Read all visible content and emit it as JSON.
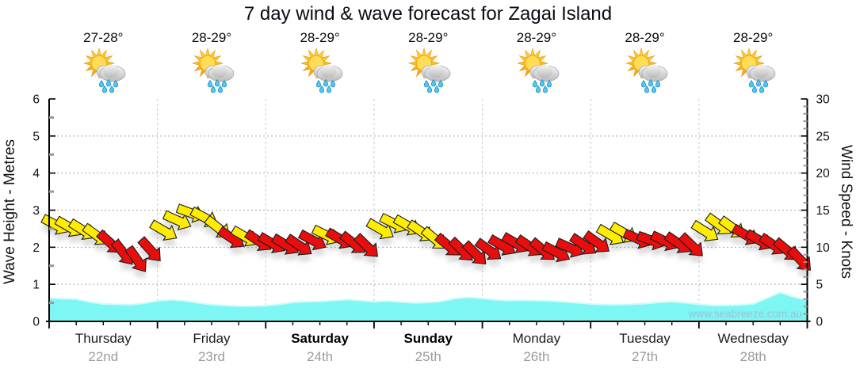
{
  "title": "7 day wind & wave forecast for Zagai Island",
  "watermark": "www.seabreeze.com.au",
  "left_axis": {
    "label": "Wave Height - Metres",
    "min": 0,
    "max": 6,
    "major_ticks": [
      0,
      1,
      2,
      3,
      4,
      5,
      6
    ],
    "minor_step": 0.5
  },
  "right_axis": {
    "label": "Wind Speed - Knots",
    "min": 0,
    "max": 30,
    "major_ticks": [
      0,
      5,
      10,
      15,
      20,
      25,
      30
    ],
    "minor_step": 1
  },
  "days": [
    {
      "name": "Thursday",
      "date": "22nd",
      "temp": "27-28°",
      "icon": "sun-cloud-rain",
      "weekend": false
    },
    {
      "name": "Friday",
      "date": "23rd",
      "temp": "28-29°",
      "icon": "sun-cloud-rain",
      "weekend": false
    },
    {
      "name": "Saturday",
      "date": "24th",
      "temp": "28-29°",
      "icon": "sun-cloud-rain",
      "weekend": true
    },
    {
      "name": "Sunday",
      "date": "25th",
      "temp": "28-29°",
      "icon": "sun-cloud-rain",
      "weekend": true
    },
    {
      "name": "Monday",
      "date": "26th",
      "temp": "28-29°",
      "icon": "sun-cloud-rain",
      "weekend": false
    },
    {
      "name": "Tuesday",
      "date": "27th",
      "temp": "28-29°",
      "icon": "sun-cloud-rain",
      "weekend": false
    },
    {
      "name": "Wednesday",
      "date": "28th",
      "temp": "28-29°",
      "icon": "sun-cloud-rain",
      "weekend": false
    }
  ],
  "colors": {
    "arrow_yellow": "#FFEC00",
    "arrow_red": "#E90E0E",
    "arrow_outline": "#1c1c1c",
    "wave_fill": "#7EF6F3",
    "wave_edge": "#C9FDFB",
    "grid_h": "#AAAAAA",
    "grid_v": "#CCCCCC",
    "axis": "#000000",
    "minor_tick": "#999999",
    "watermark": "#9CC3D6",
    "date_gray": "#9c9c9c"
  },
  "chart_data": {
    "type": "area",
    "title": "7 day wind & wave forecast for Zagai Island",
    "x_categories": [
      "Thursday 22nd",
      "Friday 23rd",
      "Saturday 24th",
      "Sunday 25th",
      "Monday 26th",
      "Tuesday 27th",
      "Wednesday 28th"
    ],
    "ylabel_left": "Wave Height - Metres",
    "ylabel_right": "Wind Speed - Knots",
    "ylim_left": [
      0,
      6
    ],
    "ylim_right": [
      0,
      30
    ],
    "grid": "on",
    "wave_height_m": {
      "x_mode": "uniform-across-7-days",
      "values": [
        0.63,
        0.61,
        0.6,
        0.52,
        0.47,
        0.46,
        0.45,
        0.49,
        0.55,
        0.58,
        0.55,
        0.5,
        0.45,
        0.43,
        0.41,
        0.41,
        0.42,
        0.46,
        0.51,
        0.53,
        0.54,
        0.56,
        0.59,
        0.56,
        0.53,
        0.55,
        0.52,
        0.5,
        0.51,
        0.54,
        0.62,
        0.65,
        0.62,
        0.58,
        0.56,
        0.57,
        0.56,
        0.55,
        0.53,
        0.5,
        0.47,
        0.45,
        0.45,
        0.46,
        0.48,
        0.51,
        0.53,
        0.5,
        0.46,
        0.43,
        0.43,
        0.44,
        0.47,
        0.62,
        0.78,
        0.66,
        0.57
      ]
    },
    "wind_arrows": {
      "note": "8 arrows per day (3-hourly); entries are [knots, direction_deg_below_horizontal, color Y|R]",
      "values": [
        [
          13.0,
          28,
          "Y"
        ],
        [
          12.7,
          30,
          "Y"
        ],
        [
          12.3,
          32,
          "Y"
        ],
        [
          11.6,
          36,
          "Y"
        ],
        [
          10.6,
          42,
          "R"
        ],
        [
          9.2,
          52,
          "R"
        ],
        [
          8.3,
          55,
          "R"
        ],
        [
          9.6,
          48,
          "R"
        ],
        [
          12.2,
          30,
          "Y"
        ],
        [
          13.6,
          24,
          "Y"
        ],
        [
          14.6,
          20,
          "Y"
        ],
        [
          14.0,
          28,
          "Y"
        ],
        [
          12.6,
          38,
          "Y"
        ],
        [
          11.2,
          34,
          "R"
        ],
        [
          11.4,
          30,
          "Y"
        ],
        [
          10.8,
          34,
          "R"
        ],
        [
          10.5,
          30,
          "R"
        ],
        [
          10.3,
          31,
          "R"
        ],
        [
          10.2,
          34,
          "R"
        ],
        [
          10.9,
          28,
          "R"
        ],
        [
          11.6,
          26,
          "Y"
        ],
        [
          11.1,
          30,
          "R"
        ],
        [
          10.5,
          38,
          "R"
        ],
        [
          10.1,
          44,
          "R"
        ],
        [
          12.4,
          30,
          "Y"
        ],
        [
          13.2,
          26,
          "Y"
        ],
        [
          12.9,
          30,
          "Y"
        ],
        [
          12.1,
          34,
          "Y"
        ],
        [
          11.1,
          40,
          "Y"
        ],
        [
          10.2,
          40,
          "R"
        ],
        [
          9.6,
          44,
          "R"
        ],
        [
          9.1,
          45,
          "R"
        ],
        [
          9.6,
          36,
          "R"
        ],
        [
          10.2,
          30,
          "R"
        ],
        [
          10.5,
          30,
          "R"
        ],
        [
          10.1,
          34,
          "R"
        ],
        [
          9.6,
          40,
          "R"
        ],
        [
          9.3,
          28,
          "R"
        ],
        [
          9.9,
          24,
          "R"
        ],
        [
          10.3,
          34,
          "R"
        ],
        [
          10.6,
          36,
          "R"
        ],
        [
          11.6,
          30,
          "Y"
        ],
        [
          11.9,
          30,
          "Y"
        ],
        [
          11.1,
          24,
          "R"
        ],
        [
          10.9,
          20,
          "R"
        ],
        [
          10.8,
          26,
          "R"
        ],
        [
          10.5,
          34,
          "R"
        ],
        [
          10.2,
          44,
          "R"
        ],
        [
          12.1,
          32,
          "Y"
        ],
        [
          13.0,
          36,
          "Y"
        ],
        [
          12.6,
          36,
          "Y"
        ],
        [
          11.6,
          30,
          "R"
        ],
        [
          10.9,
          30,
          "R"
        ],
        [
          10.3,
          34,
          "R"
        ],
        [
          9.6,
          40,
          "R"
        ],
        [
          8.3,
          46,
          "R"
        ]
      ]
    }
  }
}
